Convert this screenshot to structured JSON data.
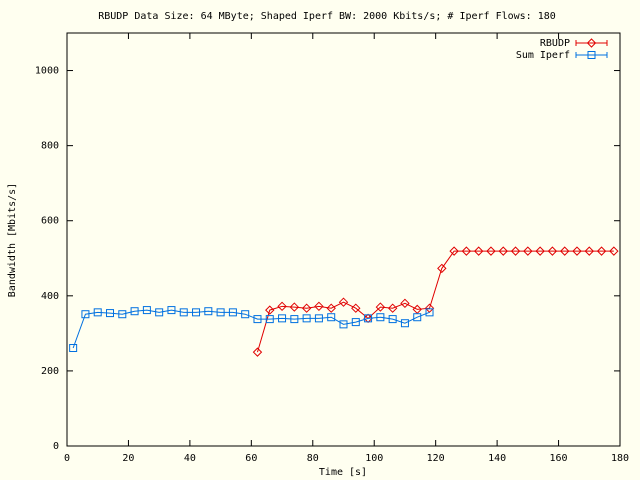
{
  "chart_data": {
    "type": "line",
    "title": "RBUDP Data Size: 64 MByte; Shaped Iperf BW: 2000 Kbits/s; # Iperf Flows: 180",
    "xlabel": "Time [s]",
    "ylabel": "Bandwidth [Mbits/s]",
    "xlim": [
      0,
      180
    ],
    "xticks": [
      0,
      20,
      40,
      60,
      80,
      100,
      120,
      140,
      160,
      180
    ],
    "ylim": [
      0,
      1100
    ],
    "yticks": [
      0,
      200,
      400,
      600,
      800,
      1000
    ],
    "legend": "top-right",
    "series": [
      {
        "name": "RBUDP",
        "color": "#e00000",
        "marker": "diamond",
        "x": [
          62,
          66,
          70,
          74,
          78,
          82,
          86,
          90,
          94,
          98,
          102,
          106,
          110,
          114,
          118,
          122,
          126,
          130,
          134,
          138,
          142,
          146,
          150,
          154,
          158,
          162,
          166,
          170,
          174,
          178
        ],
        "values": [
          250,
          362,
          372,
          370,
          367,
          372,
          367,
          383,
          367,
          340,
          370,
          367,
          380,
          364,
          367,
          473,
          519,
          519,
          519,
          519,
          519,
          519,
          519,
          519,
          519,
          519,
          519,
          519,
          519,
          519
        ]
      },
      {
        "name": "Sum Iperf",
        "color": "#0070e0",
        "marker": "square",
        "x": [
          2,
          6,
          10,
          14,
          18,
          22,
          26,
          30,
          34,
          38,
          42,
          46,
          50,
          54,
          58,
          62,
          66,
          70,
          74,
          78,
          82,
          86,
          90,
          94,
          98,
          102,
          106,
          110,
          114,
          118
        ],
        "values": [
          261,
          351,
          356,
          354,
          351,
          359,
          362,
          356,
          362,
          356,
          356,
          359,
          356,
          356,
          351,
          338,
          338,
          340,
          338,
          340,
          340,
          343,
          324,
          330,
          340,
          343,
          338,
          327,
          343,
          356
        ]
      }
    ]
  }
}
